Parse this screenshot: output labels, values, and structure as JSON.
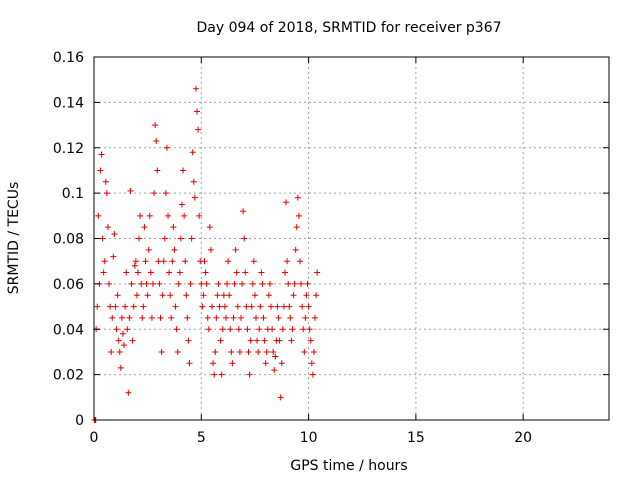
{
  "chart_data": {
    "type": "scatter",
    "title": "Day 094 of 2018, SRMTID for receiver p367",
    "xlabel": "GPS time / hours",
    "ylabel": "SRMTID / TECUs",
    "xlim": [
      0,
      24
    ],
    "ylim": [
      0,
      0.16
    ],
    "x_ticks": [
      0,
      5,
      10,
      15,
      20
    ],
    "x_tick_labels": [
      "0",
      "5",
      "10",
      "15",
      "20"
    ],
    "y_ticks": [
      0,
      0.02,
      0.04,
      0.06,
      0.08,
      0.1,
      0.12,
      0.14,
      0.16
    ],
    "y_tick_labels": [
      "0",
      "0.02",
      "0.04",
      "0.06",
      "0.08",
      "0.1",
      "0.12",
      "0.14",
      "0.16"
    ],
    "grid": true,
    "marker": "plus",
    "color": "#e00000",
    "series": [
      {
        "name": "p367",
        "points": [
          [
            0.02,
            0.0
          ],
          [
            0.05,
            0.0
          ],
          [
            0.08,
            0.0
          ],
          [
            0.1,
            0.04
          ],
          [
            0.15,
            0.05
          ],
          [
            0.2,
            0.09
          ],
          [
            0.25,
            0.06
          ],
          [
            0.3,
            0.11
          ],
          [
            0.35,
            0.117
          ],
          [
            0.4,
            0.08
          ],
          [
            0.45,
            0.065
          ],
          [
            0.5,
            0.07
          ],
          [
            0.55,
            0.105
          ],
          [
            0.6,
            0.1
          ],
          [
            0.65,
            0.085
          ],
          [
            0.7,
            0.06
          ],
          [
            0.75,
            0.05
          ],
          [
            0.8,
            0.03
          ],
          [
            0.85,
            0.045
          ],
          [
            0.9,
            0.072
          ],
          [
            0.95,
            0.082
          ],
          [
            1.0,
            0.05
          ],
          [
            1.05,
            0.04
          ],
          [
            1.1,
            0.055
          ],
          [
            1.15,
            0.035
          ],
          [
            1.2,
            0.03
          ],
          [
            1.25,
            0.023
          ],
          [
            1.3,
            0.045
          ],
          [
            1.35,
            0.038
          ],
          [
            1.4,
            0.033
          ],
          [
            1.45,
            0.05
          ],
          [
            1.5,
            0.065
          ],
          [
            1.55,
            0.04
          ],
          [
            1.6,
            0.012
          ],
          [
            1.65,
            0.045
          ],
          [
            1.7,
            0.101
          ],
          [
            1.75,
            0.06
          ],
          [
            1.8,
            0.035
          ],
          [
            1.85,
            0.05
          ],
          [
            1.9,
            0.068
          ],
          [
            1.95,
            0.07
          ],
          [
            2.0,
            0.055
          ],
          [
            2.05,
            0.065
          ],
          [
            2.1,
            0.08
          ],
          [
            2.15,
            0.09
          ],
          [
            2.2,
            0.06
          ],
          [
            2.25,
            0.045
          ],
          [
            2.3,
            0.05
          ],
          [
            2.35,
            0.085
          ],
          [
            2.4,
            0.07
          ],
          [
            2.45,
            0.06
          ],
          [
            2.5,
            0.055
          ],
          [
            2.55,
            0.075
          ],
          [
            2.6,
            0.09
          ],
          [
            2.65,
            0.065
          ],
          [
            2.7,
            0.045
          ],
          [
            2.75,
            0.06
          ],
          [
            2.8,
            0.1
          ],
          [
            2.85,
            0.13
          ],
          [
            2.9,
            0.123
          ],
          [
            2.95,
            0.11
          ],
          [
            3.0,
            0.07
          ],
          [
            3.05,
            0.06
          ],
          [
            3.1,
            0.045
          ],
          [
            3.15,
            0.03
          ],
          [
            3.2,
            0.055
          ],
          [
            3.25,
            0.07
          ],
          [
            3.3,
            0.08
          ],
          [
            3.35,
            0.1
          ],
          [
            3.4,
            0.12
          ],
          [
            3.45,
            0.09
          ],
          [
            3.5,
            0.065
          ],
          [
            3.55,
            0.055
          ],
          [
            3.6,
            0.045
          ],
          [
            3.65,
            0.07
          ],
          [
            3.7,
            0.085
          ],
          [
            3.75,
            0.075
          ],
          [
            3.8,
            0.05
          ],
          [
            3.85,
            0.04
          ],
          [
            3.9,
            0.03
          ],
          [
            3.95,
            0.06
          ],
          [
            4.0,
            0.065
          ],
          [
            4.05,
            0.08
          ],
          [
            4.1,
            0.095
          ],
          [
            4.15,
            0.11
          ],
          [
            4.2,
            0.09
          ],
          [
            4.25,
            0.07
          ],
          [
            4.3,
            0.055
          ],
          [
            4.35,
            0.045
          ],
          [
            4.4,
            0.035
          ],
          [
            4.45,
            0.025
          ],
          [
            4.5,
            0.06
          ],
          [
            4.55,
            0.08
          ],
          [
            4.6,
            0.118
          ],
          [
            4.65,
            0.105
          ],
          [
            4.7,
            0.098
          ],
          [
            4.75,
            0.146
          ],
          [
            4.8,
            0.136
          ],
          [
            4.85,
            0.128
          ],
          [
            4.9,
            0.09
          ],
          [
            4.95,
            0.07
          ],
          [
            5.0,
            0.06
          ],
          [
            5.05,
            0.05
          ],
          [
            5.1,
            0.055
          ],
          [
            5.15,
            0.07
          ],
          [
            5.2,
            0.065
          ],
          [
            5.25,
            0.06
          ],
          [
            5.3,
            0.045
          ],
          [
            5.35,
            0.04
          ],
          [
            5.4,
            0.085
          ],
          [
            5.45,
            0.075
          ],
          [
            5.5,
            0.05
          ],
          [
            5.55,
            0.025
          ],
          [
            5.6,
            0.02
          ],
          [
            5.65,
            0.03
          ],
          [
            5.7,
            0.045
          ],
          [
            5.75,
            0.055
          ],
          [
            5.8,
            0.06
          ],
          [
            5.85,
            0.05
          ],
          [
            5.9,
            0.035
          ],
          [
            5.95,
            0.02
          ],
          [
            6.0,
            0.04
          ],
          [
            6.05,
            0.055
          ],
          [
            6.1,
            0.05
          ],
          [
            6.15,
            0.045
          ],
          [
            6.2,
            0.06
          ],
          [
            6.25,
            0.07
          ],
          [
            6.3,
            0.055
          ],
          [
            6.35,
            0.04
          ],
          [
            6.4,
            0.03
          ],
          [
            6.45,
            0.025
          ],
          [
            6.5,
            0.045
          ],
          [
            6.55,
            0.06
          ],
          [
            6.6,
            0.075
          ],
          [
            6.65,
            0.065
          ],
          [
            6.7,
            0.05
          ],
          [
            6.75,
            0.04
          ],
          [
            6.8,
            0.03
          ],
          [
            6.85,
            0.045
          ],
          [
            6.9,
            0.06
          ],
          [
            6.95,
            0.092
          ],
          [
            7.0,
            0.08
          ],
          [
            7.05,
            0.065
          ],
          [
            7.1,
            0.05
          ],
          [
            7.15,
            0.04
          ],
          [
            7.2,
            0.03
          ],
          [
            7.25,
            0.02
          ],
          [
            7.3,
            0.035
          ],
          [
            7.35,
            0.05
          ],
          [
            7.4,
            0.06
          ],
          [
            7.45,
            0.07
          ],
          [
            7.5,
            0.055
          ],
          [
            7.55,
            0.045
          ],
          [
            7.6,
            0.035
          ],
          [
            7.65,
            0.03
          ],
          [
            7.7,
            0.04
          ],
          [
            7.75,
            0.05
          ],
          [
            7.8,
            0.065
          ],
          [
            7.85,
            0.06
          ],
          [
            7.9,
            0.045
          ],
          [
            7.95,
            0.035
          ],
          [
            8.0,
            0.025
          ],
          [
            8.05,
            0.03
          ],
          [
            8.1,
            0.04
          ],
          [
            8.15,
            0.055
          ],
          [
            8.2,
            0.06
          ],
          [
            8.25,
            0.05
          ],
          [
            8.3,
            0.04
          ],
          [
            8.35,
            0.03
          ],
          [
            8.4,
            0.022
          ],
          [
            8.45,
            0.028
          ],
          [
            8.5,
            0.035
          ],
          [
            8.55,
            0.05
          ],
          [
            8.6,
            0.045
          ],
          [
            8.65,
            0.035
          ],
          [
            8.7,
            0.01
          ],
          [
            8.75,
            0.025
          ],
          [
            8.8,
            0.04
          ],
          [
            8.85,
            0.05
          ],
          [
            8.9,
            0.065
          ],
          [
            8.95,
            0.096
          ],
          [
            9.0,
            0.07
          ],
          [
            9.05,
            0.06
          ],
          [
            9.1,
            0.05
          ],
          [
            9.15,
            0.045
          ],
          [
            9.2,
            0.035
          ],
          [
            9.25,
            0.04
          ],
          [
            9.3,
            0.055
          ],
          [
            9.35,
            0.06
          ],
          [
            9.4,
            0.075
          ],
          [
            9.45,
            0.085
          ],
          [
            9.5,
            0.098
          ],
          [
            9.55,
            0.09
          ],
          [
            9.6,
            0.07
          ],
          [
            9.65,
            0.06
          ],
          [
            9.7,
            0.05
          ],
          [
            9.75,
            0.04
          ],
          [
            9.8,
            0.03
          ],
          [
            9.85,
            0.045
          ],
          [
            9.9,
            0.055
          ],
          [
            9.95,
            0.06
          ],
          [
            10.0,
            0.05
          ],
          [
            10.05,
            0.04
          ],
          [
            10.1,
            0.035
          ],
          [
            10.15,
            0.025
          ],
          [
            10.2,
            0.02
          ],
          [
            10.25,
            0.03
          ],
          [
            10.3,
            0.045
          ],
          [
            10.35,
            0.055
          ],
          [
            10.4,
            0.065
          ]
        ]
      }
    ]
  }
}
